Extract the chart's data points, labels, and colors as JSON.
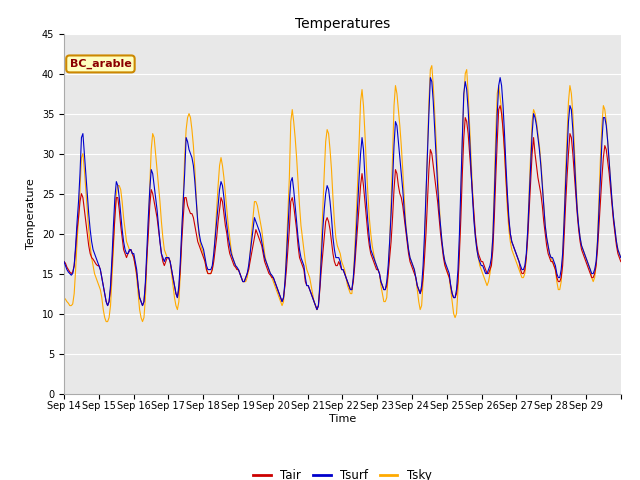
{
  "title": "Temperatures",
  "xlabel": "Time",
  "ylabel": "Temperature",
  "ylim": [
    0,
    45
  ],
  "yticks": [
    0,
    5,
    10,
    15,
    20,
    25,
    30,
    35,
    40,
    45
  ],
  "bg_color": "#e8e8e8",
  "fig_bg_color": "#ffffff",
  "line_colors": {
    "Tair": "#cc0000",
    "Tsurf": "#0000cc",
    "Tsky": "#ffaa00"
  },
  "legend_label": "BC_arable",
  "x_labels": [
    "Sep 14",
    "Sep 15",
    "Sep 16",
    "Sep 17",
    "Sep 18",
    "Sep 19",
    "Sep 20",
    "Sep 21",
    "Sep 22",
    "Sep 23",
    "Sep 24",
    "Sep 25",
    "Sep 26",
    "Sep 27",
    "Sep 28",
    "Sep 29"
  ],
  "n_days": 16,
  "points_per_day": 24,
  "Tair": [
    16.5,
    16.3,
    15.8,
    15.5,
    15.2,
    15.0,
    15.2,
    16.0,
    18.0,
    20.5,
    22.0,
    24.0,
    25.0,
    24.5,
    23.0,
    21.5,
    20.0,
    18.5,
    17.5,
    17.0,
    16.8,
    16.5,
    16.2,
    16.0,
    16.0,
    15.5,
    14.5,
    13.5,
    12.5,
    11.5,
    11.0,
    11.5,
    13.0,
    16.0,
    19.0,
    22.0,
    24.5,
    24.5,
    23.0,
    21.0,
    19.5,
    18.0,
    17.5,
    17.0,
    17.5,
    17.8,
    18.0,
    17.5,
    17.0,
    16.0,
    15.0,
    13.5,
    12.0,
    11.5,
    11.0,
    11.5,
    13.5,
    17.0,
    20.0,
    23.5,
    25.5,
    25.0,
    24.0,
    23.0,
    22.0,
    20.5,
    19.0,
    17.5,
    16.5,
    16.0,
    16.5,
    17.0,
    17.0,
    16.5,
    15.5,
    14.5,
    13.5,
    12.5,
    12.0,
    13.0,
    15.5,
    19.0,
    22.0,
    24.5,
    24.5,
    23.5,
    23.0,
    22.5,
    22.5,
    22.0,
    21.0,
    20.0,
    19.0,
    18.5,
    18.0,
    17.5,
    17.0,
    16.5,
    15.5,
    15.0,
    15.0,
    15.0,
    15.5,
    16.5,
    18.0,
    19.5,
    21.5,
    23.0,
    24.5,
    24.0,
    22.5,
    21.0,
    20.0,
    18.5,
    17.5,
    17.0,
    16.5,
    16.0,
    15.8,
    15.5,
    15.5,
    15.0,
    14.5,
    14.0,
    14.0,
    14.5,
    15.0,
    15.5,
    16.5,
    17.5,
    18.5,
    19.5,
    20.5,
    20.0,
    19.5,
    19.0,
    18.5,
    17.5,
    16.5,
    16.0,
    15.5,
    15.0,
    14.8,
    14.5,
    14.5,
    14.0,
    13.5,
    13.0,
    12.5,
    12.0,
    11.5,
    12.0,
    13.5,
    15.5,
    18.0,
    20.5,
    24.0,
    24.5,
    23.5,
    22.0,
    20.5,
    18.5,
    17.0,
    16.5,
    16.0,
    15.5,
    14.0,
    13.5,
    13.5,
    13.0,
    12.5,
    12.0,
    11.5,
    11.0,
    10.5,
    11.0,
    13.0,
    15.5,
    17.5,
    19.5,
    21.5,
    22.0,
    21.5,
    20.5,
    19.0,
    17.5,
    16.5,
    16.0,
    16.0,
    16.5,
    16.0,
    15.5,
    15.5,
    15.0,
    14.5,
    14.0,
    13.5,
    13.0,
    13.0,
    14.0,
    16.0,
    18.5,
    21.0,
    23.5,
    26.0,
    27.5,
    26.0,
    24.0,
    22.0,
    20.0,
    18.5,
    17.5,
    17.0,
    16.5,
    16.0,
    15.5,
    15.5,
    15.0,
    14.0,
    13.5,
    13.0,
    13.0,
    13.5,
    15.0,
    17.0,
    19.0,
    22.0,
    25.5,
    28.0,
    27.5,
    26.0,
    25.0,
    24.5,
    23.5,
    22.0,
    20.5,
    19.0,
    17.5,
    16.5,
    16.0,
    15.5,
    15.0,
    14.5,
    13.5,
    13.0,
    12.5,
    13.0,
    14.5,
    17.0,
    20.0,
    24.0,
    28.0,
    30.5,
    30.0,
    28.5,
    27.0,
    25.5,
    24.0,
    22.0,
    20.0,
    18.5,
    17.0,
    16.0,
    15.5,
    15.0,
    14.5,
    13.5,
    12.5,
    12.0,
    12.0,
    12.5,
    14.0,
    17.5,
    22.0,
    27.5,
    32.0,
    34.5,
    34.0,
    32.5,
    30.0,
    27.5,
    25.0,
    22.5,
    20.0,
    18.5,
    17.5,
    17.0,
    16.5,
    16.5,
    16.0,
    15.5,
    15.0,
    15.0,
    15.5,
    16.0,
    18.0,
    22.0,
    27.0,
    31.5,
    35.5,
    36.0,
    35.0,
    33.0,
    30.5,
    27.0,
    24.0,
    21.5,
    20.0,
    19.0,
    18.5,
    18.0,
    17.5,
    17.0,
    16.5,
    15.5,
    15.0,
    15.0,
    15.5,
    17.0,
    19.5,
    23.0,
    26.5,
    30.0,
    32.0,
    30.0,
    28.5,
    27.0,
    26.0,
    25.0,
    23.5,
    21.5,
    20.0,
    18.5,
    17.5,
    17.0,
    16.5,
    16.5,
    16.0,
    15.5,
    14.5,
    14.0,
    14.0,
    14.5,
    16.0,
    19.5,
    23.5,
    27.0,
    30.0,
    32.5,
    32.0,
    30.0,
    27.5,
    25.0,
    22.5,
    20.5,
    19.0,
    18.0,
    17.5,
    17.0,
    16.5,
    16.0,
    15.5,
    15.0,
    14.5,
    14.5,
    15.0,
    16.0,
    18.0,
    21.0,
    24.0,
    27.0,
    29.5,
    31.0,
    30.5,
    29.0,
    27.5,
    25.5,
    23.5,
    21.5,
    20.0,
    18.5,
    17.5,
    17.0,
    16.5
  ],
  "Tsurf": [
    16.5,
    16.0,
    15.5,
    15.2,
    15.0,
    14.8,
    15.0,
    16.0,
    18.5,
    21.5,
    24.0,
    27.5,
    32.0,
    32.5,
    30.0,
    27.5,
    25.0,
    22.5,
    20.5,
    19.0,
    18.0,
    17.5,
    17.0,
    16.5,
    16.0,
    15.5,
    14.5,
    13.5,
    12.5,
    11.5,
    11.0,
    11.5,
    13.5,
    17.0,
    21.0,
    24.5,
    26.5,
    26.0,
    24.5,
    22.5,
    20.5,
    19.0,
    18.0,
    17.5,
    17.5,
    18.0,
    18.0,
    17.5,
    17.5,
    16.5,
    15.5,
    13.5,
    12.0,
    11.5,
    11.0,
    11.5,
    14.0,
    18.0,
    22.0,
    25.5,
    28.0,
    27.5,
    26.0,
    24.5,
    23.0,
    21.0,
    19.0,
    17.5,
    17.0,
    16.5,
    17.0,
    17.0,
    17.0,
    16.5,
    15.5,
    14.5,
    13.5,
    12.5,
    12.0,
    13.5,
    16.5,
    20.5,
    24.0,
    27.5,
    32.0,
    31.5,
    30.5,
    30.0,
    29.5,
    28.5,
    26.5,
    24.0,
    21.5,
    20.0,
    19.0,
    18.5,
    18.0,
    17.0,
    16.0,
    15.5,
    15.5,
    15.5,
    16.0,
    17.5,
    19.5,
    21.5,
    23.5,
    25.5,
    26.5,
    26.0,
    24.5,
    22.5,
    21.0,
    19.5,
    18.5,
    17.5,
    17.0,
    16.5,
    16.0,
    15.8,
    15.5,
    15.0,
    14.5,
    14.0,
    14.0,
    14.5,
    15.0,
    16.0,
    17.5,
    19.0,
    20.5,
    22.0,
    21.5,
    21.0,
    20.5,
    20.0,
    19.0,
    18.0,
    17.0,
    16.5,
    16.0,
    15.5,
    15.0,
    14.8,
    14.5,
    14.0,
    13.5,
    13.0,
    12.5,
    12.0,
    11.5,
    12.0,
    14.0,
    17.0,
    20.5,
    24.0,
    26.5,
    27.0,
    25.5,
    23.5,
    21.5,
    19.5,
    18.0,
    17.0,
    16.5,
    16.0,
    14.5,
    13.5,
    13.5,
    13.0,
    12.5,
    12.0,
    11.5,
    11.0,
    10.5,
    11.0,
    13.5,
    17.0,
    20.5,
    23.0,
    25.0,
    26.0,
    25.5,
    24.0,
    22.0,
    19.5,
    18.0,
    17.0,
    17.0,
    17.0,
    16.5,
    15.5,
    15.5,
    15.0,
    14.5,
    14.0,
    13.5,
    13.0,
    13.0,
    14.5,
    17.0,
    20.0,
    23.5,
    27.0,
    30.0,
    32.0,
    30.5,
    27.0,
    24.0,
    21.5,
    19.5,
    18.0,
    17.5,
    17.0,
    16.5,
    16.0,
    15.5,
    15.0,
    14.0,
    13.5,
    13.0,
    13.0,
    14.0,
    16.0,
    19.0,
    22.5,
    26.5,
    31.0,
    34.0,
    33.5,
    31.5,
    29.5,
    27.5,
    25.5,
    23.0,
    21.0,
    19.5,
    18.0,
    17.0,
    16.5,
    16.0,
    15.5,
    14.5,
    13.5,
    13.0,
    12.5,
    13.5,
    16.0,
    20.0,
    25.0,
    30.0,
    35.0,
    39.5,
    39.0,
    36.5,
    33.0,
    29.5,
    26.0,
    23.0,
    21.0,
    19.0,
    17.5,
    16.5,
    16.0,
    15.5,
    15.0,
    13.5,
    12.5,
    12.0,
    12.0,
    13.0,
    15.5,
    20.0,
    26.0,
    32.0,
    37.5,
    39.0,
    38.0,
    35.5,
    32.0,
    28.0,
    24.5,
    21.5,
    19.5,
    18.0,
    17.0,
    16.5,
    16.0,
    16.0,
    15.5,
    15.0,
    15.0,
    15.5,
    16.0,
    17.0,
    19.5,
    24.5,
    30.0,
    35.0,
    38.5,
    39.5,
    38.5,
    36.0,
    32.5,
    28.5,
    25.0,
    22.0,
    20.0,
    19.0,
    18.5,
    18.0,
    17.5,
    17.0,
    16.5,
    16.0,
    15.5,
    15.5,
    16.0,
    17.5,
    20.5,
    24.5,
    28.5,
    32.5,
    35.0,
    34.5,
    33.5,
    32.0,
    30.5,
    28.5,
    26.0,
    23.5,
    21.0,
    19.5,
    18.5,
    17.5,
    17.0,
    17.0,
    16.5,
    16.0,
    15.0,
    14.5,
    14.5,
    15.5,
    17.5,
    21.5,
    26.0,
    30.0,
    34.0,
    36.0,
    35.5,
    33.0,
    29.5,
    26.0,
    23.0,
    21.0,
    19.5,
    18.5,
    18.0,
    17.5,
    17.0,
    16.5,
    16.0,
    15.5,
    15.0,
    15.0,
    15.5,
    16.5,
    19.0,
    23.0,
    27.0,
    31.5,
    34.5,
    34.5,
    33.5,
    31.5,
    29.0,
    26.5,
    24.0,
    22.0,
    20.5,
    19.0,
    18.0,
    17.5,
    17.0
  ],
  "Tsky": [
    12.0,
    11.8,
    11.5,
    11.3,
    11.0,
    11.0,
    11.2,
    12.5,
    15.5,
    19.0,
    22.0,
    25.5,
    29.5,
    30.0,
    28.0,
    25.5,
    23.0,
    20.5,
    18.5,
    17.0,
    16.0,
    15.0,
    14.5,
    14.0,
    13.5,
    13.0,
    12.0,
    10.5,
    9.5,
    9.0,
    9.0,
    9.5,
    11.0,
    14.5,
    18.0,
    22.5,
    25.0,
    26.0,
    26.0,
    25.5,
    24.0,
    22.0,
    20.5,
    19.0,
    18.5,
    18.0,
    18.0,
    17.5,
    17.0,
    16.0,
    14.5,
    12.5,
    10.5,
    9.5,
    9.0,
    9.5,
    12.0,
    16.5,
    21.0,
    26.0,
    30.5,
    32.5,
    32.0,
    30.0,
    28.0,
    26.0,
    24.0,
    21.5,
    19.5,
    18.0,
    17.5,
    17.0,
    17.0,
    16.5,
    15.0,
    13.5,
    12.0,
    11.0,
    10.5,
    11.5,
    15.0,
    20.0,
    24.5,
    29.5,
    33.0,
    34.5,
    35.0,
    34.5,
    33.0,
    31.0,
    28.0,
    24.5,
    21.5,
    19.5,
    18.5,
    18.0,
    17.5,
    16.5,
    15.5,
    15.0,
    15.0,
    15.0,
    15.5,
    17.0,
    20.0,
    23.0,
    26.0,
    28.5,
    29.5,
    28.5,
    27.0,
    25.0,
    23.0,
    21.0,
    19.5,
    18.0,
    17.0,
    16.5,
    16.0,
    15.5,
    15.5,
    15.0,
    14.5,
    14.0,
    14.0,
    14.0,
    14.5,
    15.5,
    17.5,
    20.0,
    22.0,
    24.0,
    24.0,
    23.5,
    22.5,
    21.5,
    20.5,
    19.0,
    17.5,
    16.5,
    16.0,
    15.5,
    15.0,
    14.5,
    14.0,
    13.5,
    13.0,
    12.5,
    12.0,
    11.5,
    11.0,
    11.5,
    14.0,
    18.0,
    22.5,
    27.0,
    34.0,
    35.5,
    34.0,
    32.0,
    29.5,
    26.5,
    23.5,
    21.0,
    19.5,
    18.0,
    16.5,
    15.5,
    15.0,
    14.5,
    13.5,
    12.5,
    11.5,
    11.0,
    10.5,
    11.0,
    14.0,
    18.5,
    23.0,
    27.5,
    31.5,
    33.0,
    32.5,
    30.5,
    28.0,
    24.5,
    21.5,
    19.5,
    18.5,
    18.0,
    17.5,
    16.5,
    16.0,
    15.5,
    14.5,
    13.5,
    13.0,
    12.5,
    12.5,
    14.5,
    18.0,
    22.0,
    26.5,
    31.5,
    36.5,
    38.0,
    36.0,
    32.5,
    28.5,
    25.0,
    22.0,
    20.0,
    18.5,
    17.5,
    16.5,
    16.0,
    15.5,
    15.0,
    13.5,
    12.5,
    11.5,
    11.5,
    12.0,
    15.0,
    19.0,
    24.0,
    29.5,
    36.0,
    38.5,
    37.5,
    35.5,
    33.5,
    31.0,
    28.0,
    24.5,
    21.5,
    19.5,
    18.0,
    17.0,
    16.5,
    16.0,
    15.5,
    14.5,
    13.0,
    11.5,
    10.5,
    11.0,
    14.0,
    18.5,
    24.5,
    30.5,
    36.5,
    40.5,
    41.0,
    38.5,
    35.0,
    31.5,
    27.5,
    24.0,
    21.0,
    19.0,
    17.5,
    16.5,
    15.5,
    15.0,
    14.5,
    13.0,
    11.5,
    10.0,
    9.5,
    10.0,
    13.0,
    18.5,
    25.0,
    31.5,
    37.0,
    40.0,
    40.5,
    37.5,
    33.5,
    29.5,
    25.5,
    22.0,
    19.5,
    18.0,
    17.0,
    16.0,
    15.5,
    15.0,
    14.5,
    14.0,
    13.5,
    14.0,
    15.0,
    16.5,
    20.0,
    26.0,
    32.5,
    37.5,
    38.5,
    37.0,
    35.5,
    33.0,
    30.0,
    26.5,
    23.0,
    20.5,
    19.0,
    18.0,
    17.5,
    17.0,
    16.5,
    16.0,
    15.5,
    15.0,
    14.5,
    14.5,
    15.0,
    17.0,
    20.5,
    25.5,
    30.0,
    34.0,
    35.5,
    35.0,
    34.0,
    32.5,
    31.0,
    29.0,
    26.5,
    23.5,
    21.0,
    19.5,
    18.5,
    17.5,
    17.0,
    16.5,
    16.0,
    15.5,
    14.0,
    13.0,
    13.0,
    14.0,
    17.0,
    22.0,
    27.5,
    32.0,
    36.5,
    38.5,
    37.5,
    35.0,
    31.0,
    27.0,
    23.5,
    21.0,
    19.5,
    18.5,
    18.0,
    17.5,
    17.0,
    16.5,
    16.0,
    15.5,
    14.5,
    14.0,
    14.5,
    16.0,
    19.5,
    24.5,
    29.5,
    33.5,
    36.0,
    35.5,
    34.0,
    31.5,
    29.0,
    26.5,
    24.0,
    22.0,
    20.5,
    19.0,
    18.0,
    17.5,
    17.0
  ]
}
